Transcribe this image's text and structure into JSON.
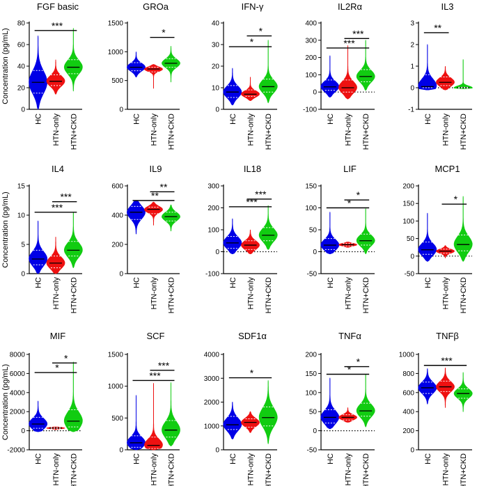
{
  "colors": {
    "hc": "#0000e6",
    "htn_only": "#ee1111",
    "htn_ckd": "#11cc11",
    "axis": "#000000"
  },
  "chart_data": {
    "type": "violin",
    "groups": [
      "HC",
      "HTN-only",
      "HTN+CKD"
    ],
    "ylabel": "Concentration (pg/mL)",
    "panels": [
      {
        "title": "FGF basic",
        "ylim": [
          0,
          80
        ],
        "ticks": [
          0,
          20,
          40,
          60,
          80
        ],
        "series": [
          {
            "min": 0,
            "max": 68,
            "q1": 15,
            "median": 25,
            "q3": 36
          },
          {
            "min": 14,
            "max": 46,
            "q1": 22,
            "median": 26,
            "q3": 32
          },
          {
            "min": 17,
            "max": 75,
            "q1": 33,
            "median": 39,
            "q3": 46
          }
        ],
        "sig": [
          {
            "text": "***",
            "from": 0,
            "to": 2,
            "y": 73
          }
        ]
      },
      {
        "title": "GROa",
        "ylim": [
          0,
          1500
        ],
        "ticks": [
          0,
          500,
          1000,
          1500
        ],
        "series": [
          {
            "min": 560,
            "max": 1000,
            "q1": 670,
            "median": 730,
            "q3": 810
          },
          {
            "min": 360,
            "max": 780,
            "q1": 650,
            "median": 700,
            "q3": 730
          },
          {
            "min": 470,
            "max": 1100,
            "q1": 730,
            "median": 800,
            "q3": 880
          }
        ],
        "sig": [
          {
            "text": "*",
            "from": 1,
            "to": 2,
            "y": 1250
          }
        ]
      },
      {
        "title": "IFN-γ",
        "ylim": [
          0,
          40
        ],
        "ticks": [
          0,
          10,
          20,
          30,
          40
        ],
        "series": [
          {
            "min": 2,
            "max": 19,
            "q1": 5.5,
            "median": 8,
            "q3": 11
          },
          {
            "min": 4,
            "max": 15,
            "q1": 6,
            "median": 7,
            "q3": 9
          },
          {
            "min": 3,
            "max": 32,
            "q1": 8,
            "median": 10.5,
            "q3": 14
          }
        ],
        "sig": [
          {
            "text": "*",
            "from": 1,
            "to": 2,
            "y": 34
          },
          {
            "text": "*",
            "from": 0,
            "to": 2,
            "y": 29
          }
        ]
      },
      {
        "title": "IL2Rα",
        "ylim": [
          -100,
          400
        ],
        "ticks": [
          -100,
          0,
          100,
          200,
          300,
          400
        ],
        "series": [
          {
            "min": -30,
            "max": 210,
            "q1": 10,
            "median": 30,
            "q3": 70
          },
          {
            "min": -40,
            "max": 270,
            "q1": 0,
            "median": 25,
            "q3": 70
          },
          {
            "min": 10,
            "max": 300,
            "q1": 60,
            "median": 90,
            "q3": 130
          }
        ],
        "sig": [
          {
            "text": "***",
            "from": 1,
            "to": 2,
            "y": 310
          },
          {
            "text": "***",
            "from": 0,
            "to": 2,
            "y": 255
          }
        ]
      },
      {
        "title": "IL3",
        "ylim": [
          -1,
          3
        ],
        "ticks": [
          -1,
          0,
          1,
          2,
          3
        ],
        "series": [
          {
            "min": -0.1,
            "max": 2.0,
            "q1": 0,
            "median": 0.05,
            "q3": 0.6
          },
          {
            "min": -0.1,
            "max": 1.0,
            "q1": 0.1,
            "median": 0.25,
            "q3": 0.5
          },
          {
            "min": -0.05,
            "max": 1.3,
            "q1": -0.02,
            "median": 0,
            "q3": 0.02
          }
        ],
        "sig": [
          {
            "text": "**",
            "from": 0,
            "to": 1,
            "y": 2.55
          }
        ]
      },
      {
        "title": "IL4",
        "ylim": [
          0,
          15
        ],
        "ticks": [
          0,
          5,
          10,
          15
        ],
        "series": [
          {
            "min": 0,
            "max": 9,
            "q1": 1.5,
            "median": 2.5,
            "q3": 4
          },
          {
            "min": 0,
            "max": 6.3,
            "q1": 1,
            "median": 1.8,
            "q3": 3
          },
          {
            "min": 1,
            "max": 10.5,
            "q1": 3,
            "median": 4,
            "q3": 5.5
          }
        ],
        "sig": [
          {
            "text": "***",
            "from": 1,
            "to": 2,
            "y": 12.3
          },
          {
            "text": "***",
            "from": 0,
            "to": 2,
            "y": 10.5
          }
        ]
      },
      {
        "title": "IL9",
        "ylim": [
          0,
          600
        ],
        "ticks": [
          0,
          200,
          400,
          600
        ],
        "series": [
          {
            "min": 270,
            "max": 500,
            "q1": 370,
            "median": 420,
            "q3": 460
          },
          {
            "min": 330,
            "max": 490,
            "q1": 410,
            "median": 440,
            "q3": 455
          },
          {
            "min": 290,
            "max": 470,
            "q1": 360,
            "median": 390,
            "q3": 420
          }
        ],
        "sig": [
          {
            "text": "**",
            "from": 1,
            "to": 2,
            "y": 560
          },
          {
            "text": "**",
            "from": 0,
            "to": 2,
            "y": 500
          }
        ]
      },
      {
        "title": "IL18",
        "ylim": [
          -100,
          300
        ],
        "ticks": [
          -100,
          0,
          100,
          200,
          300
        ],
        "series": [
          {
            "min": -10,
            "max": 150,
            "q1": 15,
            "median": 40,
            "q3": 70
          },
          {
            "min": -10,
            "max": 100,
            "q1": 10,
            "median": 30,
            "q3": 50
          },
          {
            "min": 10,
            "max": 210,
            "q1": 50,
            "median": 75,
            "q3": 110
          }
        ],
        "sig": [
          {
            "text": "***",
            "from": 1,
            "to": 2,
            "y": 240
          },
          {
            "text": "***",
            "from": 0,
            "to": 2,
            "y": 205
          }
        ]
      },
      {
        "title": "LIF",
        "ylim": [
          -50,
          150
        ],
        "ticks": [
          -50,
          0,
          50,
          100,
          150
        ],
        "series": [
          {
            "min": -5,
            "max": 90,
            "q1": 5,
            "median": 15,
            "q3": 30
          },
          {
            "min": 10,
            "max": 22,
            "q1": 13,
            "median": 16,
            "q3": 19
          },
          {
            "min": -5,
            "max": 98,
            "q1": 15,
            "median": 25,
            "q3": 40
          }
        ],
        "sig": [
          {
            "text": "*",
            "from": 1,
            "to": 2,
            "y": 118
          },
          {
            "text": "*",
            "from": 0,
            "to": 2,
            "y": 100
          }
        ]
      },
      {
        "title": "MCP1",
        "ylim": [
          -50,
          200
        ],
        "ticks": [
          -50,
          0,
          50,
          100,
          150,
          200
        ],
        "series": [
          {
            "min": -15,
            "max": 122,
            "q1": 5,
            "median": 18,
            "q3": 40
          },
          {
            "min": -5,
            "max": 30,
            "q1": 8,
            "median": 14,
            "q3": 20
          },
          {
            "min": -15,
            "max": 170,
            "q1": 15,
            "median": 33,
            "q3": 60
          }
        ],
        "sig": [
          {
            "text": "*",
            "from": 1,
            "to": 2,
            "y": 148
          }
        ]
      },
      {
        "title": "MIF",
        "ylim": [
          -2000,
          8000
        ],
        "ticks": [
          -2000,
          0,
          2000,
          4000,
          6000,
          8000
        ],
        "series": [
          {
            "min": -100,
            "max": 3100,
            "q1": 250,
            "median": 700,
            "q3": 1400
          },
          {
            "min": 100,
            "max": 400,
            "q1": 200,
            "median": 280,
            "q3": 340
          },
          {
            "min": -100,
            "max": 7200,
            "q1": 400,
            "median": 1000,
            "q3": 2200
          }
        ],
        "sig": [
          {
            "text": "*",
            "from": 1,
            "to": 2,
            "y": 7100
          },
          {
            "text": "*",
            "from": 0,
            "to": 2,
            "y": 6100
          }
        ]
      },
      {
        "title": "SCF",
        "ylim": [
          0,
          1500
        ],
        "ticks": [
          0,
          500,
          1000,
          1500
        ],
        "series": [
          {
            "min": 0,
            "max": 860,
            "q1": 40,
            "median": 110,
            "q3": 220
          },
          {
            "min": 0,
            "max": 1050,
            "q1": 20,
            "median": 70,
            "q3": 200
          },
          {
            "min": 60,
            "max": 1060,
            "q1": 200,
            "median": 310,
            "q3": 460
          }
        ],
        "sig": [
          {
            "text": "***",
            "from": 1,
            "to": 2,
            "y": 1250
          },
          {
            "text": "***",
            "from": 0,
            "to": 2,
            "y": 1090
          }
        ]
      },
      {
        "title": "SDF1α",
        "ylim": [
          0,
          4000
        ],
        "ticks": [
          0,
          1000,
          2000,
          3000,
          4000
        ],
        "series": [
          {
            "min": 450,
            "max": 2000,
            "q1": 850,
            "median": 1050,
            "q3": 1400
          },
          {
            "min": 720,
            "max": 1600,
            "q1": 950,
            "median": 1150,
            "q3": 1300
          },
          {
            "min": 250,
            "max": 2900,
            "q1": 1000,
            "median": 1350,
            "q3": 1800
          }
        ],
        "sig": [
          {
            "text": "*",
            "from": 0,
            "to": 2,
            "y": 3020
          }
        ]
      },
      {
        "title": "TNFα",
        "ylim": [
          -50,
          200
        ],
        "ticks": [
          -50,
          0,
          50,
          100,
          150,
          200
        ],
        "series": [
          {
            "min": 5,
            "max": 138,
            "q1": 20,
            "median": 35,
            "q3": 55
          },
          {
            "min": 22,
            "max": 60,
            "q1": 28,
            "median": 35,
            "q3": 42
          },
          {
            "min": 10,
            "max": 148,
            "q1": 38,
            "median": 52,
            "q3": 72
          }
        ],
        "sig": [
          {
            "text": "*",
            "from": 1,
            "to": 2,
            "y": 168
          },
          {
            "text": "*",
            "from": 0,
            "to": 2,
            "y": 148
          }
        ]
      },
      {
        "title": "TNFβ",
        "ylim": [
          0,
          1000
        ],
        "ticks": [
          0,
          200,
          400,
          600,
          800,
          1000
        ],
        "series": [
          {
            "min": 480,
            "max": 850,
            "q1": 590,
            "median": 650,
            "q3": 710
          },
          {
            "min": 440,
            "max": 860,
            "q1": 610,
            "median": 660,
            "q3": 720
          },
          {
            "min": 400,
            "max": 810,
            "q1": 540,
            "median": 590,
            "q3": 640
          }
        ],
        "sig": [
          {
            "text": "***",
            "from": 0,
            "to": 2,
            "y": 885
          }
        ]
      }
    ]
  }
}
